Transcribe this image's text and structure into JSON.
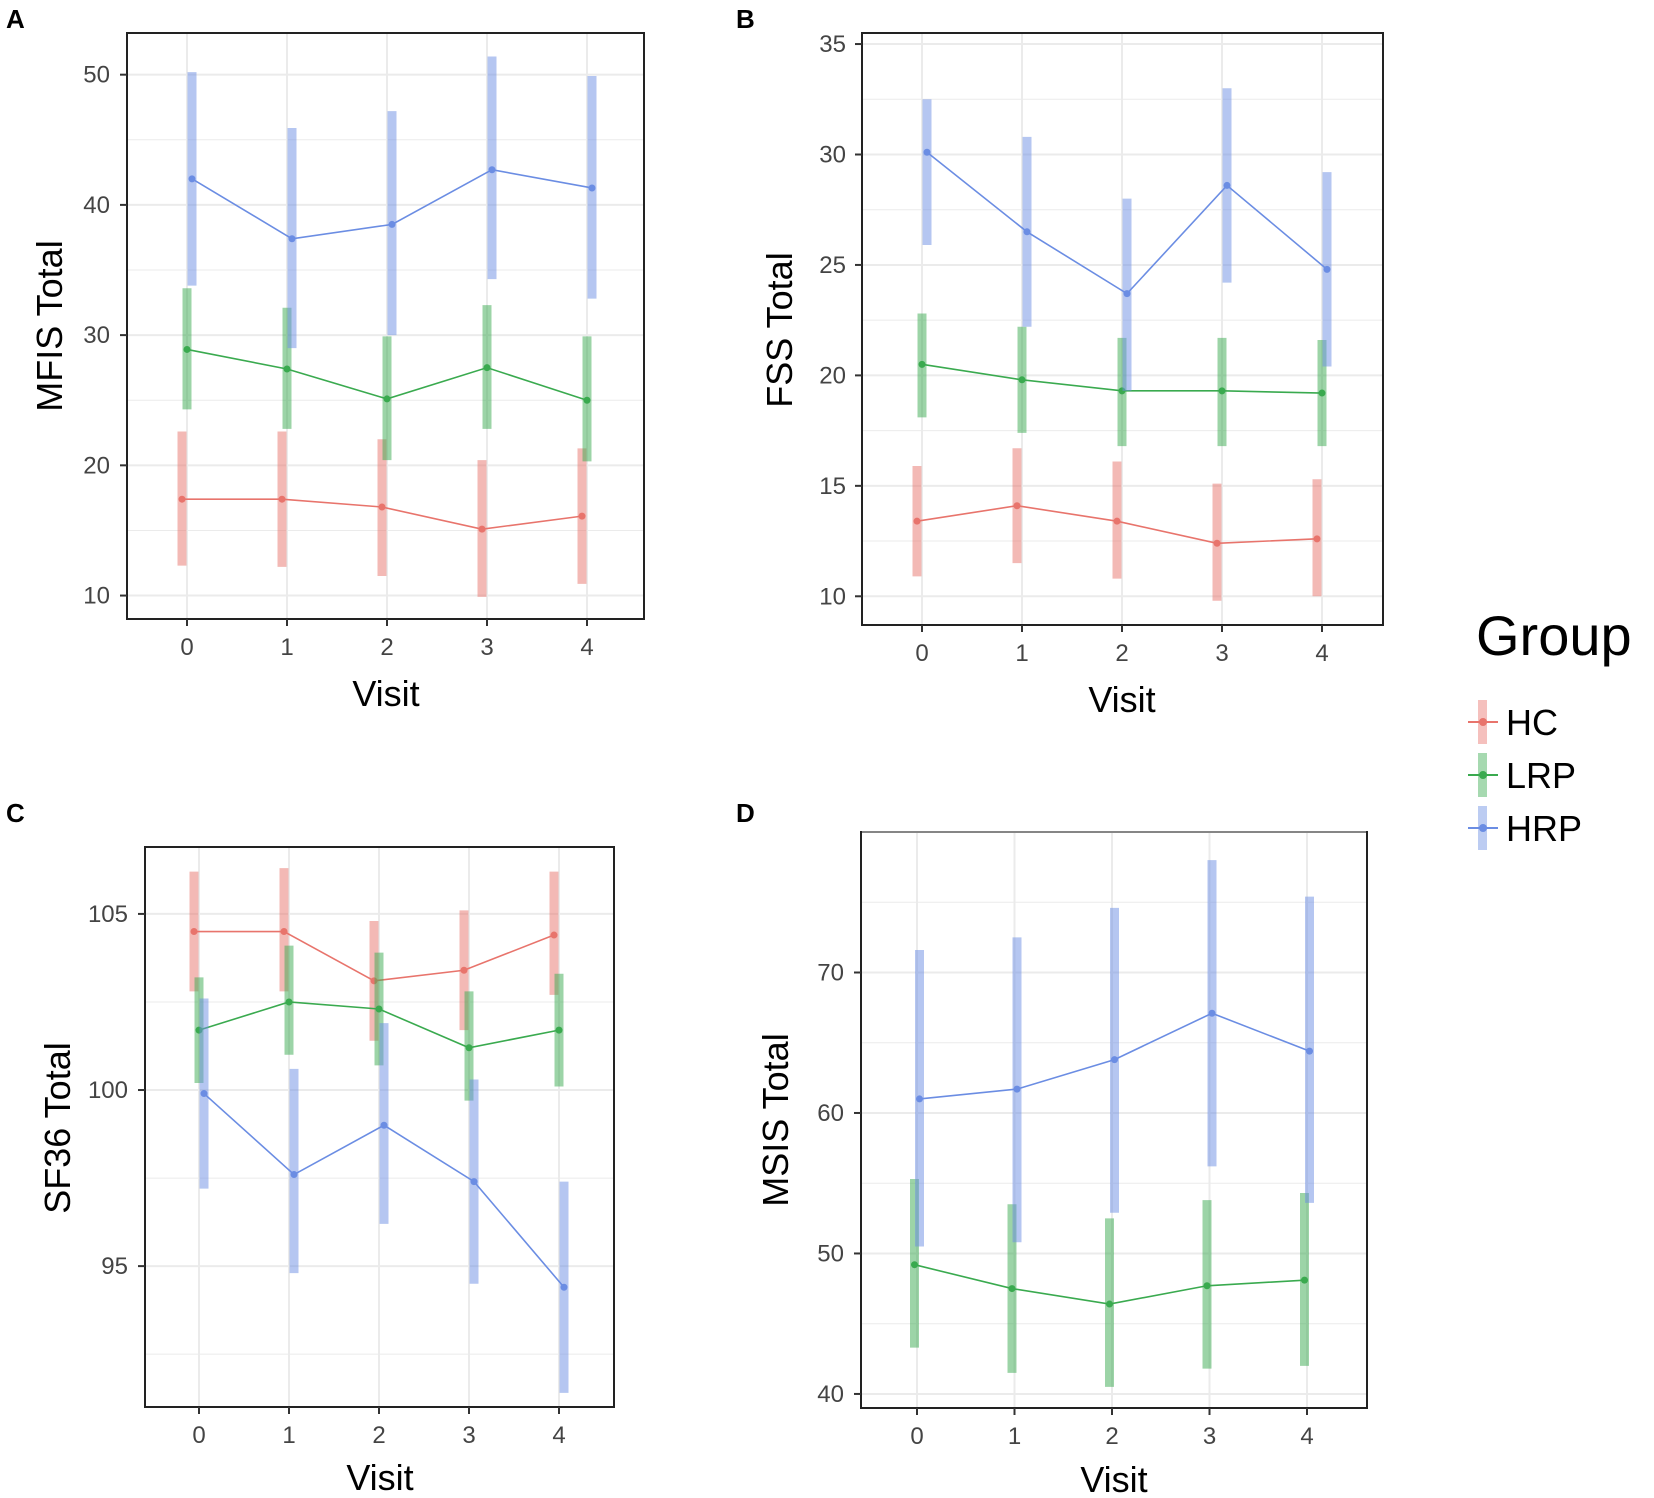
{
  "chart_data": [
    {
      "panel": "A",
      "type": "line",
      "xlabel": "Visit",
      "ylabel": "MFIS Total",
      "categories": [
        0,
        1,
        2,
        3,
        4
      ],
      "yticks": [
        10,
        20,
        30,
        40,
        50
      ],
      "ylim": [
        8.2,
        53.2
      ],
      "series": [
        {
          "name": "HC",
          "values": [
            17.4,
            17.4,
            16.8,
            15.1,
            16.1
          ],
          "low": [
            12.3,
            12.2,
            11.5,
            9.9,
            10.9
          ],
          "high": [
            22.6,
            22.6,
            22.0,
            20.4,
            21.3
          ]
        },
        {
          "name": "LRP",
          "values": [
            28.9,
            27.4,
            25.1,
            27.5,
            25.0
          ],
          "low": [
            24.3,
            22.8,
            20.4,
            22.8,
            20.3
          ],
          "high": [
            33.6,
            32.1,
            29.9,
            32.3,
            29.9
          ]
        },
        {
          "name": "HRP",
          "values": [
            42.0,
            37.4,
            38.5,
            42.7,
            41.3
          ],
          "low": [
            33.8,
            29.0,
            30.0,
            34.3,
            32.8
          ],
          "high": [
            50.2,
            45.9,
            47.2,
            51.4,
            49.9
          ]
        }
      ]
    },
    {
      "panel": "B",
      "type": "line",
      "xlabel": "Visit",
      "ylabel": "FSS Total",
      "categories": [
        0,
        1,
        2,
        3,
        4
      ],
      "yticks": [
        10,
        15,
        20,
        25,
        30,
        35
      ],
      "ylim": [
        8.7,
        35.5
      ],
      "series": [
        {
          "name": "HC",
          "values": [
            13.4,
            14.1,
            13.4,
            12.4,
            12.6
          ],
          "low": [
            10.9,
            11.5,
            10.8,
            9.8,
            10.0
          ],
          "high": [
            15.9,
            16.7,
            16.1,
            15.1,
            15.3
          ]
        },
        {
          "name": "LRP",
          "values": [
            20.5,
            19.8,
            19.3,
            19.3,
            19.2
          ],
          "low": [
            18.1,
            17.4,
            16.8,
            16.8,
            16.8
          ],
          "high": [
            22.8,
            22.2,
            21.7,
            21.7,
            21.6
          ]
        },
        {
          "name": "HRP",
          "values": [
            30.1,
            26.5,
            23.7,
            28.6,
            24.8
          ],
          "low": [
            25.9,
            22.2,
            19.3,
            24.2,
            20.4
          ],
          "high": [
            32.5,
            30.8,
            28.0,
            33.0,
            29.2
          ]
        }
      ]
    },
    {
      "panel": "C",
      "type": "line",
      "xlabel": "Visit",
      "ylabel": "SF36 Total",
      "categories": [
        0,
        1,
        2,
        3,
        4
      ],
      "yticks": [
        95,
        100,
        105
      ],
      "ylim": [
        91.0,
        106.9
      ],
      "series": [
        {
          "name": "HC",
          "values": [
            104.5,
            104.5,
            103.1,
            103.4,
            104.4
          ],
          "low": [
            102.8,
            102.8,
            101.4,
            101.7,
            102.7
          ],
          "high": [
            106.2,
            106.3,
            104.8,
            105.1,
            106.2
          ]
        },
        {
          "name": "LRP",
          "values": [
            101.7,
            102.5,
            102.3,
            101.2,
            101.7
          ],
          "low": [
            100.2,
            101.0,
            100.7,
            99.7,
            100.1
          ],
          "high": [
            103.2,
            104.1,
            103.9,
            102.8,
            103.3
          ]
        },
        {
          "name": "HRP",
          "values": [
            99.9,
            97.6,
            99.0,
            97.4,
            94.4
          ],
          "low": [
            97.2,
            94.8,
            96.2,
            94.5,
            91.4
          ],
          "high": [
            102.6,
            100.6,
            101.9,
            100.3,
            97.4
          ]
        }
      ]
    },
    {
      "panel": "D",
      "type": "line",
      "xlabel": "Visit",
      "ylabel": "MSIS Total",
      "categories": [
        0,
        1,
        2,
        3,
        4
      ],
      "yticks": [
        40,
        50,
        60,
        70
      ],
      "ylim": [
        39.0,
        80.0
      ],
      "series": [
        {
          "name": "LRP",
          "values": [
            49.2,
            47.5,
            46.4,
            47.7,
            48.1
          ],
          "low": [
            43.3,
            41.5,
            40.5,
            41.8,
            42.0
          ],
          "high": [
            55.3,
            53.5,
            52.5,
            53.8,
            54.3
          ]
        },
        {
          "name": "HRP",
          "values": [
            61.0,
            61.7,
            63.8,
            67.1,
            64.4
          ],
          "low": [
            50.5,
            50.8,
            52.9,
            56.2,
            53.6
          ],
          "high": [
            71.6,
            72.5,
            74.6,
            78.0,
            75.4
          ]
        }
      ]
    }
  ],
  "legend": {
    "title": "Group",
    "items": [
      {
        "label": "HC",
        "color": "#e8746c"
      },
      {
        "label": "LRP",
        "color": "#3aaa4f"
      },
      {
        "label": "HRP",
        "color": "#6b8de3"
      }
    ]
  }
}
